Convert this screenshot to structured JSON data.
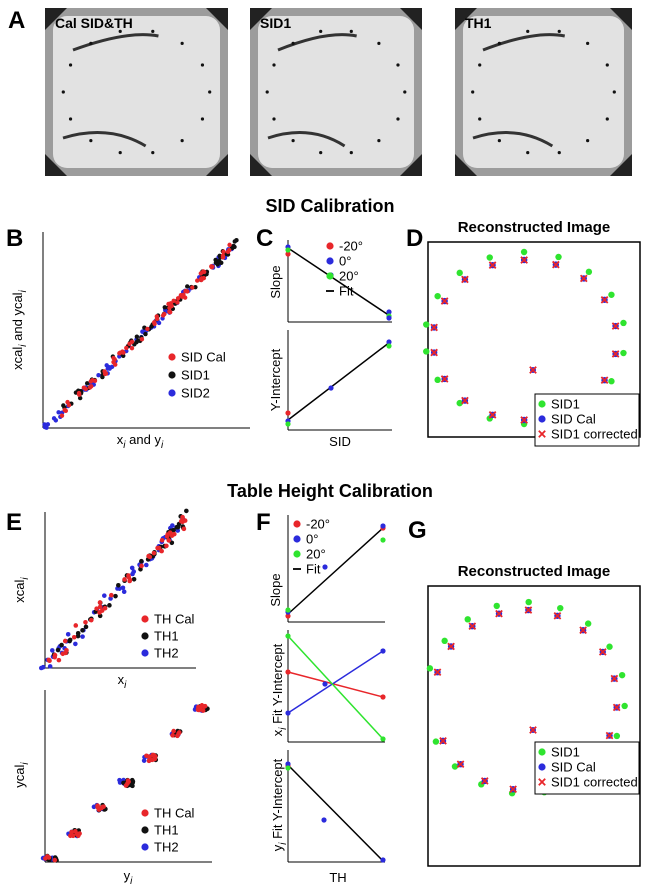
{
  "panel_a": {
    "label": "A",
    "images": [
      "Cal SID&TH",
      "SID1",
      "TH1"
    ]
  },
  "sid_title": "SID Calibration",
  "panel_b": {
    "label": "B",
    "y_label": [
      "xcal",
      "i",
      " and ycal",
      "i"
    ],
    "x_label": [
      "x",
      "i",
      " and y",
      "i"
    ],
    "legend": [
      "SID Cal",
      "SID1",
      "SID2"
    ]
  },
  "panel_c": {
    "label": "C",
    "legend": [
      "-20°",
      "0°",
      "20°",
      "Fit"
    ],
    "top_y_label": "Slope",
    "bottom_y_label": "Y-Intercept",
    "x_label": "SID"
  },
  "panel_d": {
    "label": "D",
    "title": "Reconstructed Image",
    "legend": [
      "SID1",
      "SID Cal",
      "SID1 corrected"
    ]
  },
  "th_title": "Table Height Calibration",
  "panel_e": {
    "label": "E",
    "top_y_label": [
      "xcal",
      "i"
    ],
    "top_x_label": [
      "x",
      "i"
    ],
    "top_legend": [
      "TH Cal",
      "TH1",
      "TH2"
    ],
    "bottom_y_label": [
      "ycal",
      "i"
    ],
    "bottom_x_label": [
      "y",
      "i"
    ],
    "bottom_legend": [
      "TH Cal",
      "TH1",
      "TH2"
    ]
  },
  "panel_f": {
    "label": "F",
    "legend": [
      "-20°",
      "0°",
      "20°",
      "Fit"
    ],
    "top_y_label": "Slope",
    "middle_y_label": [
      "x",
      "i",
      " Fit Y-Intercept"
    ],
    "bottom_y_label": [
      "y",
      "i",
      " Fit Y-Intercept"
    ],
    "x_label": "TH"
  },
  "panel_g": {
    "label": "G",
    "title": "Reconstructed Image",
    "legend": [
      "SID1",
      "SID Cal",
      "SID1 corrected"
    ]
  }
}
